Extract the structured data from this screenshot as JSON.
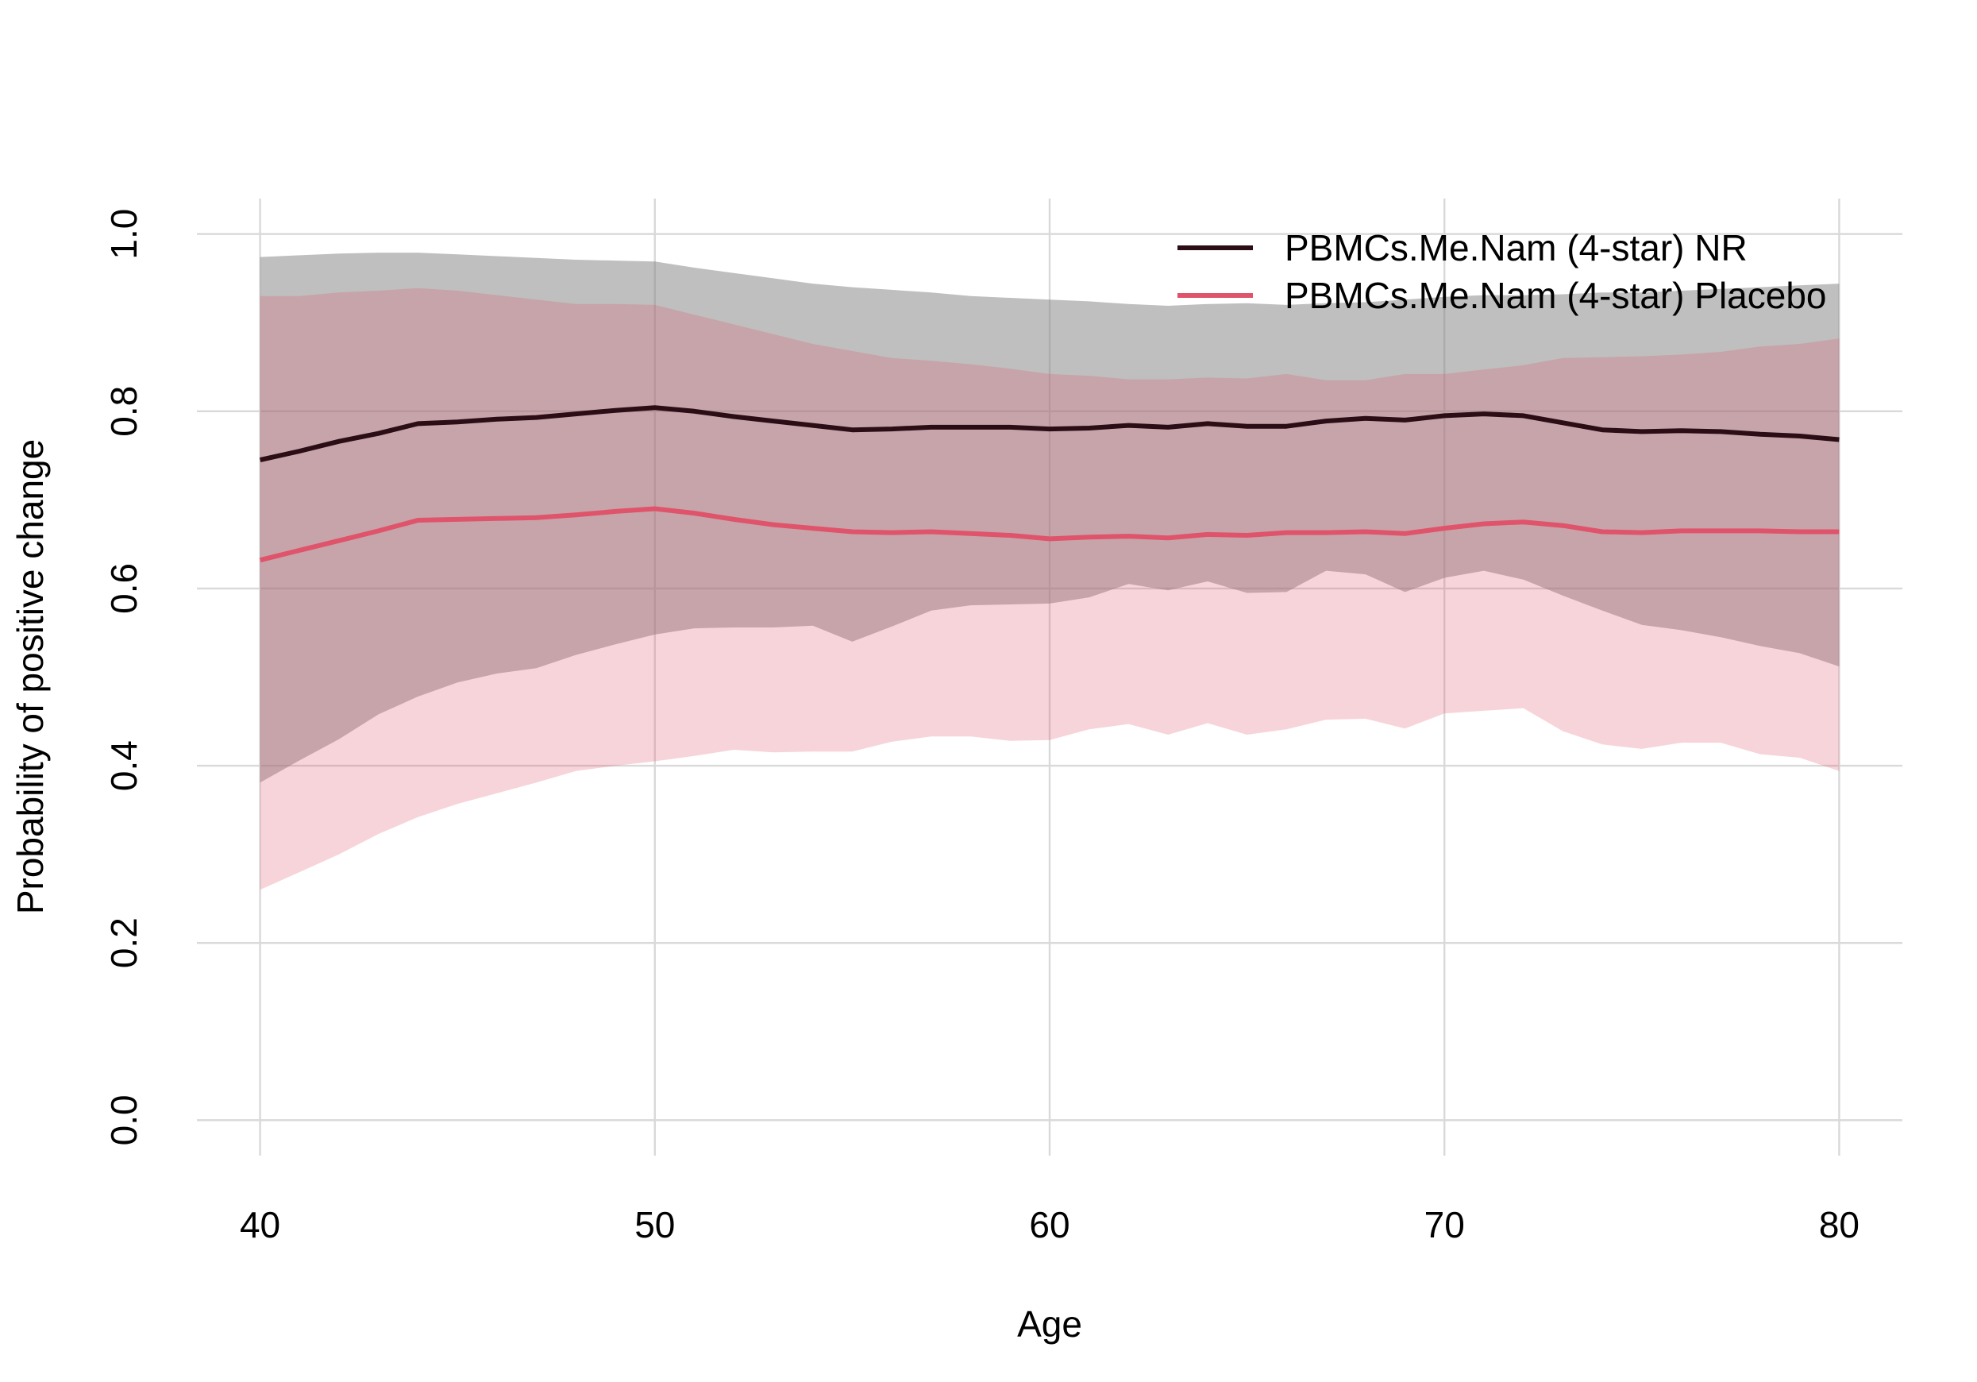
{
  "chart_data": {
    "type": "line",
    "title": "",
    "xlabel": "Age",
    "ylabel": "Probability of positive change",
    "xlim": [
      38.4,
      81.6
    ],
    "ylim": [
      -0.04,
      1.04
    ],
    "x_ticks": [
      40,
      50,
      60,
      70,
      80
    ],
    "y_ticks": [
      0.0,
      0.2,
      0.4,
      0.6,
      0.8,
      1.0
    ],
    "x_tick_labels": [
      "40",
      "50",
      "60",
      "70",
      "80"
    ],
    "y_tick_labels": [
      "0.0",
      "0.2",
      "0.4",
      "0.6",
      "0.8",
      "1.0"
    ],
    "grid": true,
    "legend_position": "top-right",
    "x": [
      40,
      41,
      42,
      43,
      44,
      45,
      46,
      47,
      48,
      49,
      50,
      51,
      52,
      53,
      54,
      55,
      56,
      57,
      58,
      59,
      60,
      61,
      62,
      63,
      64,
      65,
      66,
      67,
      68,
      69,
      70,
      71,
      72,
      73,
      74,
      75,
      76,
      77,
      78,
      79,
      80
    ],
    "series": [
      {
        "name": "PBMCs.Me.Nam (4-star) NR",
        "color": "#2b0d16",
        "band_color": "#808080",
        "band_opacity": 0.5,
        "values": [
          0.745,
          0.755,
          0.766,
          0.775,
          0.786,
          0.788,
          0.791,
          0.793,
          0.797,
          0.801,
          0.804,
          0.8,
          0.794,
          0.789,
          0.784,
          0.779,
          0.78,
          0.782,
          0.782,
          0.782,
          0.78,
          0.781,
          0.784,
          0.782,
          0.786,
          0.783,
          0.783,
          0.789,
          0.792,
          0.79,
          0.795,
          0.797,
          0.795,
          0.787,
          0.779,
          0.777,
          0.778,
          0.777,
          0.774,
          0.772,
          0.768
        ],
        "upper": [
          0.974,
          0.976,
          0.978,
          0.979,
          0.979,
          0.977,
          0.975,
          0.973,
          0.971,
          0.97,
          0.969,
          0.962,
          0.956,
          0.95,
          0.944,
          0.94,
          0.937,
          0.934,
          0.93,
          0.928,
          0.926,
          0.924,
          0.921,
          0.919,
          0.921,
          0.922,
          0.92,
          0.922,
          0.923,
          0.926,
          0.929,
          0.931,
          0.931,
          0.932,
          0.934,
          0.934,
          0.936,
          0.938,
          0.94,
          0.942,
          0.944
        ],
        "lower": [
          0.381,
          0.406,
          0.43,
          0.458,
          0.478,
          0.494,
          0.504,
          0.51,
          0.525,
          0.537,
          0.548,
          0.555,
          0.556,
          0.556,
          0.558,
          0.54,
          0.557,
          0.575,
          0.581,
          0.582,
          0.583,
          0.59,
          0.605,
          0.598,
          0.608,
          0.595,
          0.596,
          0.62,
          0.616,
          0.596,
          0.612,
          0.62,
          0.61,
          0.592,
          0.575,
          0.559,
          0.553,
          0.545,
          0.535,
          0.527,
          0.512
        ]
      },
      {
        "name": "PBMCs.Me.Nam (4-star) Placebo",
        "color": "#df536b",
        "band_color": "#df536b",
        "band_opacity": 0.25,
        "values": [
          0.632,
          0.643,
          0.654,
          0.665,
          0.677,
          0.678,
          0.679,
          0.68,
          0.683,
          0.687,
          0.69,
          0.685,
          0.678,
          0.672,
          0.668,
          0.664,
          0.663,
          0.664,
          0.662,
          0.66,
          0.656,
          0.658,
          0.659,
          0.657,
          0.661,
          0.66,
          0.663,
          0.663,
          0.664,
          0.662,
          0.668,
          0.673,
          0.675,
          0.671,
          0.664,
          0.663,
          0.665,
          0.665,
          0.665,
          0.664,
          0.664
        ],
        "upper": [
          0.93,
          0.93,
          0.934,
          0.936,
          0.939,
          0.936,
          0.931,
          0.926,
          0.921,
          0.921,
          0.92,
          0.909,
          0.898,
          0.887,
          0.876,
          0.868,
          0.86,
          0.857,
          0.853,
          0.848,
          0.842,
          0.84,
          0.836,
          0.836,
          0.838,
          0.837,
          0.842,
          0.835,
          0.835,
          0.842,
          0.842,
          0.847,
          0.852,
          0.86,
          0.861,
          0.862,
          0.864,
          0.867,
          0.873,
          0.876,
          0.882
        ],
        "lower": [
          0.26,
          0.28,
          0.3,
          0.323,
          0.342,
          0.357,
          0.369,
          0.381,
          0.394,
          0.4,
          0.405,
          0.411,
          0.418,
          0.415,
          0.416,
          0.416,
          0.427,
          0.433,
          0.433,
          0.428,
          0.429,
          0.441,
          0.447,
          0.435,
          0.448,
          0.435,
          0.441,
          0.452,
          0.453,
          0.442,
          0.459,
          0.462,
          0.465,
          0.439,
          0.424,
          0.419,
          0.426,
          0.426,
          0.413,
          0.409,
          0.394
        ]
      }
    ]
  }
}
